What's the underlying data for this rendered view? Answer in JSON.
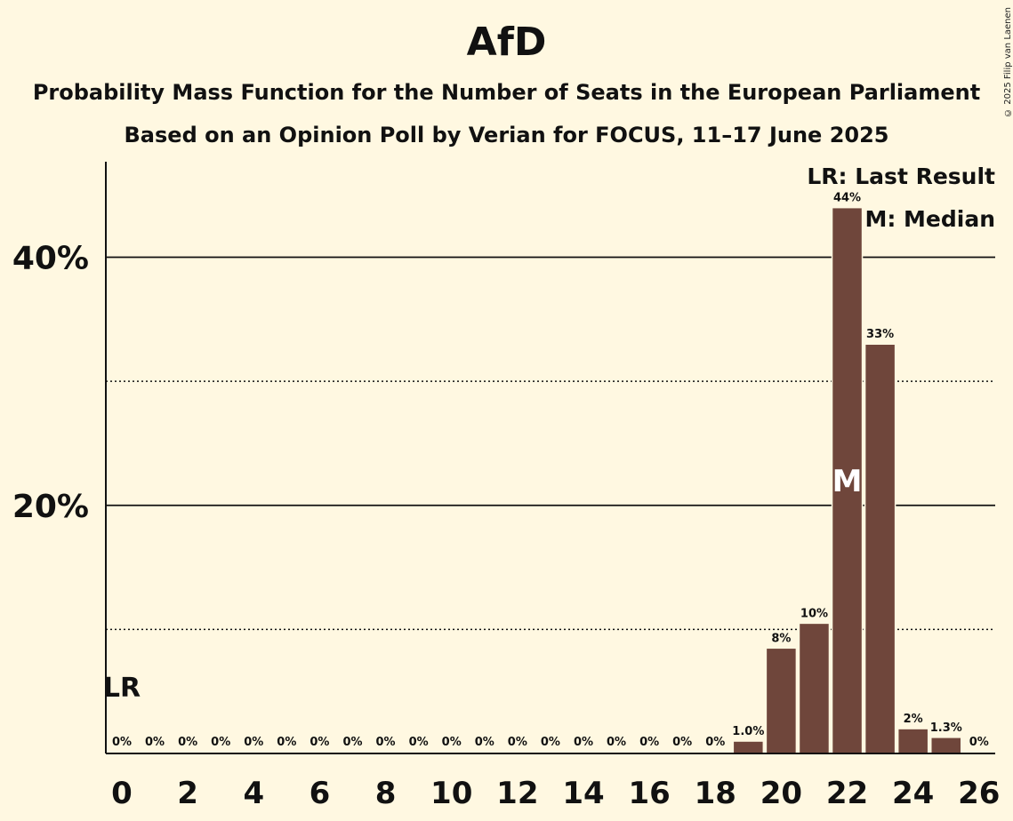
{
  "chart_data": {
    "type": "bar",
    "title": "AfD",
    "subtitle_lines": [
      "Probability Mass Function for the Number of Seats in the European Parliament",
      "Based on an Opinion Poll by Verian for FOCUS, 11–17 June 2025"
    ],
    "x": [
      0,
      1,
      2,
      3,
      4,
      5,
      6,
      7,
      8,
      9,
      10,
      11,
      12,
      13,
      14,
      15,
      16,
      17,
      18,
      19,
      20,
      21,
      22,
      23,
      24,
      25,
      26
    ],
    "values": [
      0,
      0,
      0,
      0,
      0,
      0,
      0,
      0,
      0,
      0,
      0,
      0,
      0,
      0,
      0,
      0,
      0,
      0,
      0,
      1.0,
      8.5,
      10.5,
      44,
      33,
      2,
      1.3,
      0
    ],
    "value_labels": [
      "0%",
      "0%",
      "0%",
      "0%",
      "0%",
      "0%",
      "0%",
      "0%",
      "0%",
      "0%",
      "0%",
      "0%",
      "0%",
      "0%",
      "0%",
      "0%",
      "0%",
      "0%",
      "0%",
      "1.0%",
      "8%",
      "10%",
      "44%",
      "33%",
      "2%",
      "1.3%",
      "0%"
    ],
    "x_tick_labels": [
      "0",
      "2",
      "4",
      "6",
      "8",
      "10",
      "12",
      "14",
      "16",
      "18",
      "20",
      "22",
      "24",
      "26"
    ],
    "y_tick_labels": [
      "20%",
      "40%"
    ],
    "ylim": [
      0,
      47.7
    ],
    "solid_gridlines": [
      20,
      40
    ],
    "dotted_gridlines": [
      10,
      30
    ],
    "last_result_seat": 0,
    "last_result_marker": "LR",
    "median_seat": 22,
    "median_marker": "M",
    "legend": [
      "LR: Last Result",
      "M: Median"
    ],
    "bar_color": "#6F463B",
    "background_color": "#FFF8E1"
  },
  "copyright": "© 2025 Filip van Laenen"
}
